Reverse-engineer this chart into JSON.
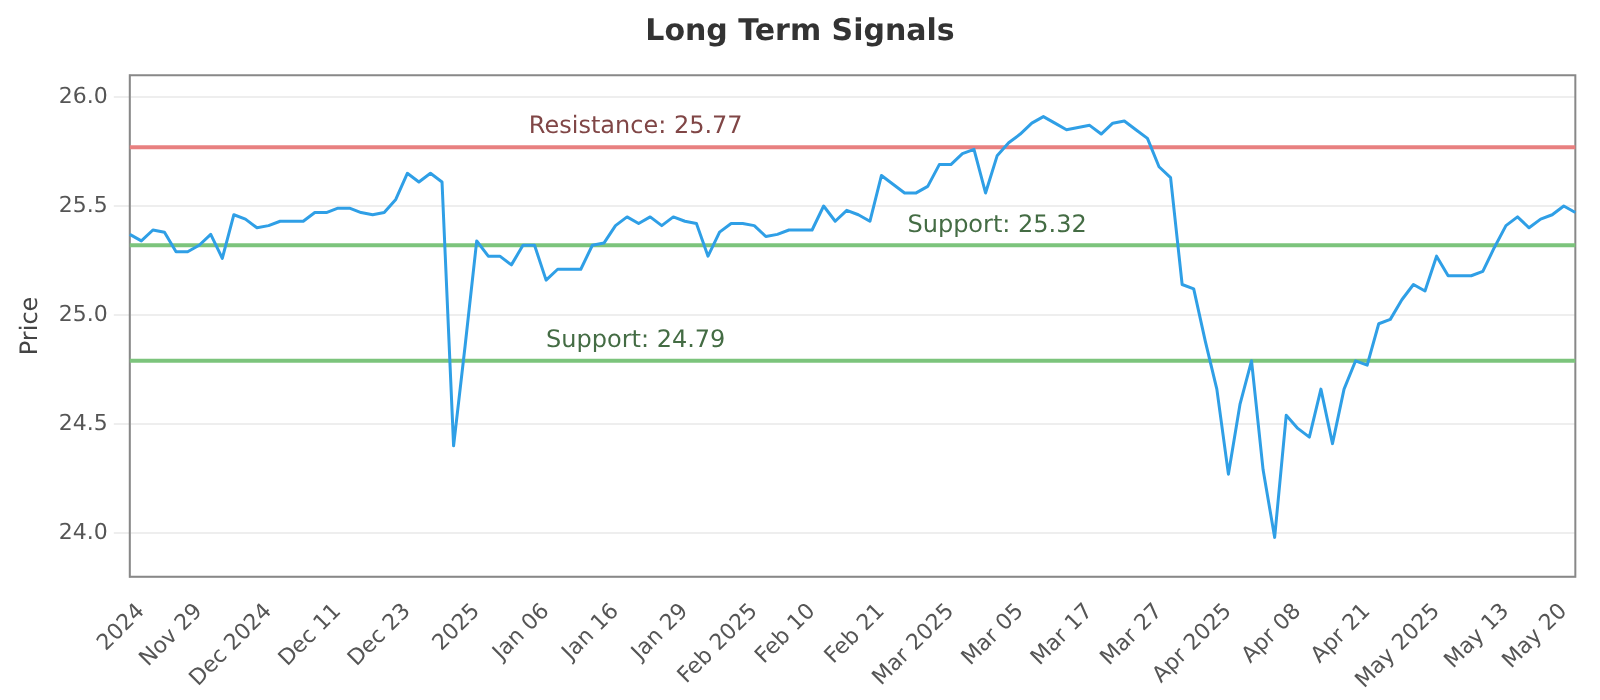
{
  "chart_data": {
    "type": "line",
    "title": "Long Term Signals",
    "ylabel": "Price",
    "categories": [
      null,
      "2024",
      null,
      null,
      null,
      null,
      "Nov 29",
      null,
      null,
      null,
      null,
      null,
      "Dec 2024",
      null,
      null,
      null,
      null,
      null,
      "Dec 11",
      null,
      null,
      null,
      null,
      null,
      "Dec 23",
      null,
      null,
      null,
      null,
      null,
      "2025",
      null,
      null,
      null,
      null,
      null,
      "Jan 06",
      null,
      null,
      null,
      null,
      null,
      "Jan 16",
      null,
      null,
      null,
      null,
      null,
      "Jan 29",
      null,
      null,
      null,
      null,
      null,
      "Feb 2025",
      null,
      null,
      null,
      null,
      "Feb 10",
      null,
      null,
      null,
      null,
      null,
      "Feb 21",
      null,
      null,
      null,
      null,
      null,
      "Mar 2025",
      null,
      null,
      null,
      null,
      null,
      "Mar 05",
      null,
      null,
      null,
      null,
      null,
      "Mar 17",
      null,
      null,
      null,
      null,
      null,
      "Mar 27",
      null,
      null,
      null,
      null,
      null,
      "Apr 2025",
      null,
      null,
      null,
      null,
      null,
      "Apr 08",
      null,
      null,
      null,
      null,
      null,
      "Apr 21",
      null,
      null,
      null,
      null,
      null,
      "May 2025",
      null,
      null,
      null,
      null,
      null,
      "May 13",
      null,
      null,
      null,
      null,
      "May 20",
      null
    ],
    "series": [
      {
        "color": "#2f9fe6",
        "values": [
          25.37,
          25.34,
          25.39,
          25.38,
          25.29,
          25.29,
          25.32,
          25.37,
          25.26,
          25.46,
          25.44,
          25.4,
          25.41,
          25.43,
          25.43,
          25.43,
          25.47,
          25.47,
          25.49,
          25.49,
          25.47,
          25.46,
          25.47,
          25.53,
          25.65,
          25.61,
          25.65,
          25.61,
          24.4,
          24.86,
          25.34,
          25.27,
          25.27,
          25.23,
          25.32,
          25.32,
          25.16,
          25.21,
          25.21,
          25.21,
          25.32,
          25.33,
          25.41,
          25.45,
          25.42,
          25.45,
          25.41,
          25.45,
          25.43,
          25.42,
          25.27,
          25.38,
          25.42,
          25.42,
          25.41,
          25.36,
          25.37,
          25.39,
          25.39,
          25.39,
          25.5,
          25.43,
          25.48,
          25.46,
          25.43,
          25.64,
          25.6,
          25.56,
          25.56,
          25.59,
          25.69,
          25.69,
          25.74,
          25.76,
          25.56,
          25.73,
          25.79,
          25.83,
          25.88,
          25.91,
          25.88,
          25.85,
          25.86,
          25.87,
          25.83,
          25.88,
          25.89,
          25.85,
          25.81,
          25.68,
          25.63,
          25.14,
          25.12,
          24.88,
          24.66,
          24.27,
          24.59,
          24.79,
          24.29,
          23.98,
          24.54,
          24.48,
          24.44,
          24.66,
          24.41,
          24.66,
          24.79,
          24.77,
          24.96,
          24.98,
          25.07,
          25.14,
          25.11,
          25.27,
          25.18,
          25.18,
          25.18,
          25.2,
          25.31,
          25.41,
          25.45,
          25.4,
          25.44,
          25.46,
          25.5,
          25.47
        ]
      }
    ],
    "ylim": [
      23.8,
      26.1
    ],
    "yticks": [
      {
        "value": 24,
        "label": "24.0"
      },
      24.5,
      {
        "value": 25,
        "label": "25.0"
      },
      25.5,
      {
        "value": 26,
        "label": "26.0"
      }
    ],
    "grid": "y",
    "marker": "none",
    "line_style": "solid",
    "ref_lines": [
      {
        "axis": "y",
        "value": 25.77,
        "label": "Resistance: 25.77",
        "color": "#e88080"
      },
      {
        "axis": "y",
        "value": 25.32,
        "label": "Support: 25.32",
        "color": "#7cc47c"
      },
      {
        "axis": "y",
        "value": 24.79,
        "label": "Support: 24.79",
        "color": "#7cc47c"
      }
    ]
  }
}
